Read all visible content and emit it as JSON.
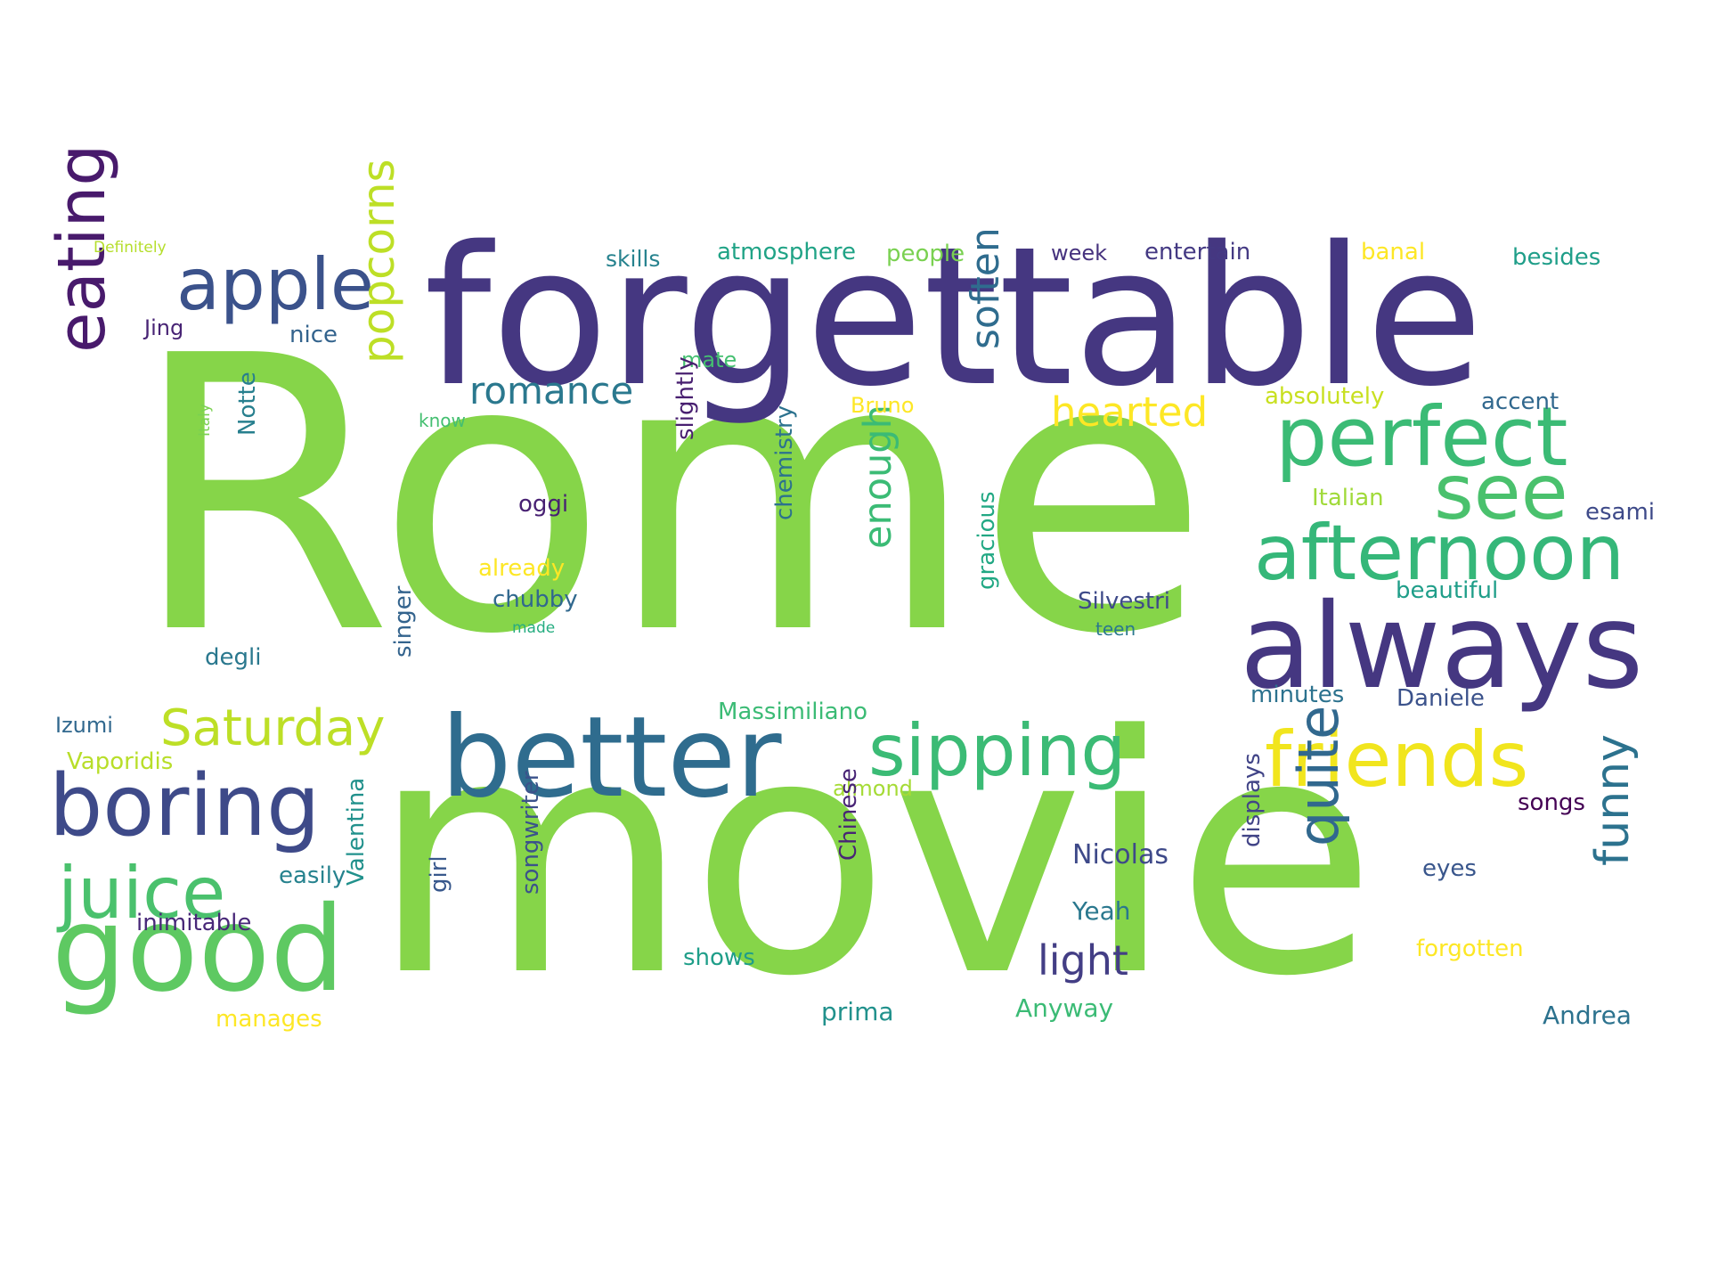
{
  "words": [
    {
      "text": "Rome",
      "color": "#86d549"
    },
    {
      "text": "movie",
      "color": "#86d549"
    },
    {
      "text": "forgettable",
      "color": "#453781"
    },
    {
      "text": "always",
      "color": "#453781"
    },
    {
      "text": "better",
      "color": "#2f6c8e"
    },
    {
      "text": "good",
      "color": "#5ec962"
    },
    {
      "text": "boring",
      "color": "#3e4a89"
    },
    {
      "text": "apple",
      "color": "#3b528b"
    },
    {
      "text": "perfect",
      "color": "#3bbb75"
    },
    {
      "text": "afternoon",
      "color": "#35b779"
    },
    {
      "text": "see",
      "color": "#4ac16d"
    },
    {
      "text": "sipping",
      "color": "#3bbb75"
    },
    {
      "text": "friends",
      "color": "#f1e51d"
    },
    {
      "text": "juice",
      "color": "#4ac16d"
    },
    {
      "text": "Saturday",
      "color": "#bddf26"
    },
    {
      "text": "eating",
      "color": "#481a6c"
    },
    {
      "text": "popcorns",
      "color": "#bddf26"
    },
    {
      "text": "romance",
      "color": "#2a788e"
    },
    {
      "text": "hearted",
      "color": "#fde725"
    },
    {
      "text": "soften",
      "color": "#2f6c8e"
    },
    {
      "text": "enough",
      "color": "#3bbb75"
    },
    {
      "text": "quite",
      "color": "#31688e"
    },
    {
      "text": "funny",
      "color": "#2c728e"
    },
    {
      "text": "light",
      "color": "#433e85"
    },
    {
      "text": "skills",
      "color": "#26828e"
    },
    {
      "text": "atmosphere",
      "color": "#20a386"
    },
    {
      "text": "people",
      "color": "#7ad151"
    },
    {
      "text": "week",
      "color": "#46327e"
    },
    {
      "text": "entertain",
      "color": "#443983"
    },
    {
      "text": "banal",
      "color": "#fde725"
    },
    {
      "text": "besides",
      "color": "#1f9e89"
    },
    {
      "text": "Definitely",
      "color": "#b5de2b"
    },
    {
      "text": "Jing",
      "color": "#482475"
    },
    {
      "text": "nice",
      "color": "#33638d"
    },
    {
      "text": "mate",
      "color": "#44bf70"
    },
    {
      "text": "Bruno",
      "color": "#fde725"
    },
    {
      "text": "absolutely",
      "color": "#c8e020"
    },
    {
      "text": "accent",
      "color": "#31688e"
    },
    {
      "text": "know",
      "color": "#44bf70"
    },
    {
      "text": "Italy",
      "color": "#7ad151"
    },
    {
      "text": "Notte",
      "color": "#277f8e"
    },
    {
      "text": "slightly",
      "color": "#481f70"
    },
    {
      "text": "oggi",
      "color": "#482173"
    },
    {
      "text": "Italian",
      "color": "#a0da39"
    },
    {
      "text": "esami",
      "color": "#3e4a89"
    },
    {
      "text": "already",
      "color": "#fde725"
    },
    {
      "text": "chubby",
      "color": "#31688e"
    },
    {
      "text": "made",
      "color": "#27ad81"
    },
    {
      "text": "chemistry",
      "color": "#2c728e"
    },
    {
      "text": "gracious",
      "color": "#22a884"
    },
    {
      "text": "Silvestri",
      "color": "#3e4a89"
    },
    {
      "text": "teen",
      "color": "#2a788e"
    },
    {
      "text": "beautiful",
      "color": "#1f9e89"
    },
    {
      "text": "degli",
      "color": "#2a788e"
    },
    {
      "text": "singer",
      "color": "#33638d"
    },
    {
      "text": "Massimiliano",
      "color": "#3bbb75"
    },
    {
      "text": "minutes",
      "color": "#2c728e"
    },
    {
      "text": "Daniele",
      "color": "#3b528b"
    },
    {
      "text": "Izumi",
      "color": "#31688e"
    },
    {
      "text": "Vaporidis",
      "color": "#b8de29"
    },
    {
      "text": "almond",
      "color": "#a5db36"
    },
    {
      "text": "songs",
      "color": "#440154"
    },
    {
      "text": "Nicolas",
      "color": "#3e4989"
    },
    {
      "text": "easily",
      "color": "#26828e"
    },
    {
      "text": "inimitable",
      "color": "#482878"
    },
    {
      "text": "Valentina",
      "color": "#21918c"
    },
    {
      "text": "girl",
      "color": "#38588c"
    },
    {
      "text": "songwriter",
      "color": "#3b528b"
    },
    {
      "text": "Chinese",
      "color": "#482475"
    },
    {
      "text": "displays",
      "color": "#414487"
    },
    {
      "text": "eyes",
      "color": "#39568c"
    },
    {
      "text": "Yeah",
      "color": "#2a788e"
    },
    {
      "text": "forgotten",
      "color": "#fde725"
    },
    {
      "text": "shows",
      "color": "#1f9e89"
    },
    {
      "text": "manages",
      "color": "#fde725"
    },
    {
      "text": "prima",
      "color": "#21918c"
    },
    {
      "text": "Anyway",
      "color": "#3bbb75"
    },
    {
      "text": "Andrea",
      "color": "#2c728e"
    }
  ]
}
